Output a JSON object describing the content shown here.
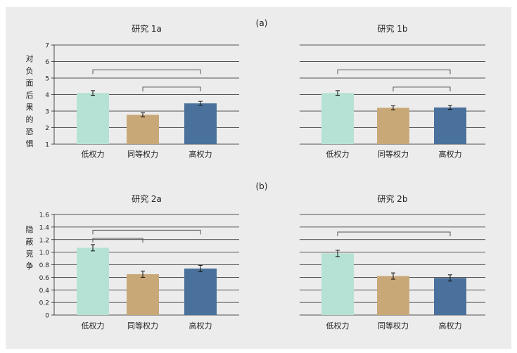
{
  "figure": {
    "panel_a_label": "(a)",
    "panel_b_label": "(b)"
  },
  "colors": {
    "low": "#b6e2d6",
    "equal": "#c9a878",
    "high": "#4a719c",
    "background": "#ececec",
    "gridline": "#222222",
    "bracket": "#555555"
  },
  "chart_data": [
    {
      "type": "bar",
      "title": "研究 1a",
      "ylabel": "对负面后果的恐惧",
      "categories": [
        "低权力",
        "同等权力",
        "高权力"
      ],
      "values": [
        4.1,
        2.78,
        3.47
      ],
      "errors": [
        0.14,
        0.12,
        0.12
      ],
      "ylim": [
        1,
        7
      ],
      "yticks": [
        "1",
        "2",
        "3",
        "4",
        "5",
        "6",
        "7"
      ],
      "grid": true,
      "brackets": [
        {
          "from": 0,
          "to": 2,
          "level": 5.5
        },
        {
          "from": 1,
          "to": 2,
          "level": 4.45
        }
      ]
    },
    {
      "type": "bar",
      "title": "研究 1b",
      "ylabel": "",
      "categories": [
        "低权力",
        "同等权力",
        "高权力"
      ],
      "values": [
        4.1,
        3.2,
        3.22
      ],
      "errors": [
        0.14,
        0.12,
        0.12
      ],
      "ylim": [
        1,
        7
      ],
      "yticks": [],
      "grid": true,
      "brackets": [
        {
          "from": 0,
          "to": 2,
          "level": 5.5
        },
        {
          "from": 1,
          "to": 2,
          "level": 4.45
        }
      ]
    },
    {
      "type": "bar",
      "title": "研究 2a",
      "ylabel": "隐蔽竞争",
      "categories": [
        "低权力",
        "同等权力",
        "高权力"
      ],
      "values": [
        1.07,
        0.65,
        0.74
      ],
      "errors": [
        0.05,
        0.05,
        0.05
      ],
      "ylim": [
        0,
        1.6
      ],
      "yticks": [
        "0",
        "0.2",
        "0.4",
        "0.6",
        "0.8",
        "1.0",
        "1.2",
        "1.4",
        "1.6"
      ],
      "grid": true,
      "brackets": [
        {
          "from": 0,
          "to": 2,
          "level": 1.35
        },
        {
          "from": 0,
          "to": 1,
          "level": 1.22
        }
      ]
    },
    {
      "type": "bar",
      "title": "研究 2b",
      "ylabel": "",
      "categories": [
        "低权力",
        "同等权力",
        "高权力"
      ],
      "values": [
        0.98,
        0.62,
        0.59
      ],
      "errors": [
        0.05,
        0.05,
        0.05
      ],
      "ylim": [
        0,
        1.6
      ],
      "yticks": [],
      "grid": true,
      "brackets": [
        {
          "from": 0,
          "to": 2,
          "level": 1.32
        }
      ]
    }
  ]
}
